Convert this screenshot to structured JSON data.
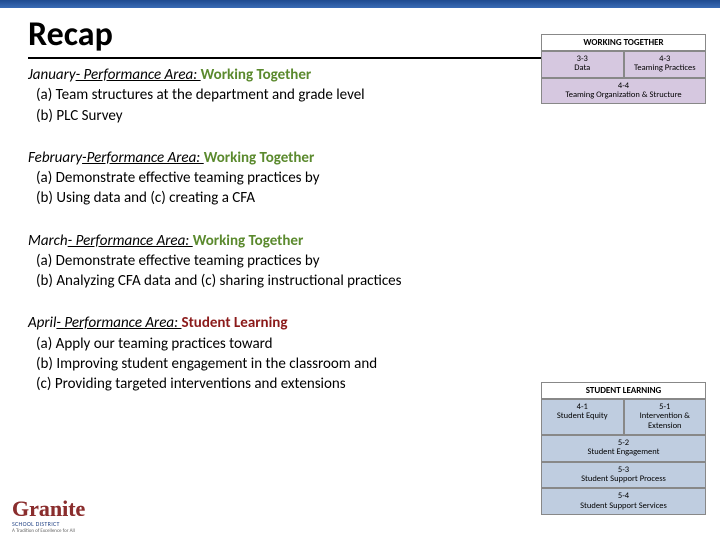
{
  "title": "Recap",
  "sections": [
    {
      "month": "January",
      "area_prefix": "- Performance Area: ",
      "area": "Working Together",
      "area_class": "wt",
      "items": [
        "(a)   Team structures at the department and grade level",
        "(b)   PLC Survey"
      ]
    },
    {
      "month": "February",
      "area_prefix": "-Performance Area: ",
      "area": "Working Together",
      "area_class": "wt",
      "items": [
        "(a)   Demonstrate effective teaming practices by",
        "(b)   Using data and (c) creating a CFA"
      ]
    },
    {
      "month": "March",
      "area_prefix": "- Performance Area: ",
      "area": "Working Together",
      "area_class": "wt",
      "items": [
        "(a)   Demonstrate effective teaming practices by",
        "(b)   Analyzing CFA data and (c) sharing instructional practices"
      ]
    },
    {
      "month": "April",
      "area_prefix": "- Performance Area: ",
      "area": "Student Learning",
      "area_class": "sl",
      "items": [
        "(a)   Apply our teaming practices toward",
        "(b)   Improving student engagement in the classroom and",
        "(c)   Providing targeted interventions and extensions"
      ]
    }
  ],
  "diagram1": {
    "title": "WORKING TOGETHER",
    "row1": [
      {
        "h": "3-3",
        "t": "Data"
      },
      {
        "h": "4-3",
        "t": "Teaming Practices"
      }
    ],
    "row2": [
      {
        "h": "4-4",
        "t": "Teaming Organization & Structure"
      }
    ]
  },
  "diagram2": {
    "title": "STUDENT LEARNING",
    "row1": [
      {
        "h": "4-1",
        "t": "Student Equity"
      },
      {
        "h": "5-1",
        "t": "Intervention & Extension"
      }
    ],
    "row2": [
      {
        "h": "5-2",
        "t": "Student Engagement"
      }
    ],
    "row3": [
      {
        "h": "5-3",
        "t": "Student Support Process"
      }
    ],
    "row4": [
      {
        "h": "5-4",
        "t": "Student Support Services"
      }
    ]
  },
  "logo": {
    "main": "Granite",
    "sub": "SCHOOL DISTRICT",
    "sub2": "A Tradition of Excellence for All"
  },
  "colors": {
    "wt": "#5b8a2e",
    "sl": "#8b1a1a",
    "cell_purple": "#d6c8e0",
    "cell_blue": "#bfcde0"
  }
}
